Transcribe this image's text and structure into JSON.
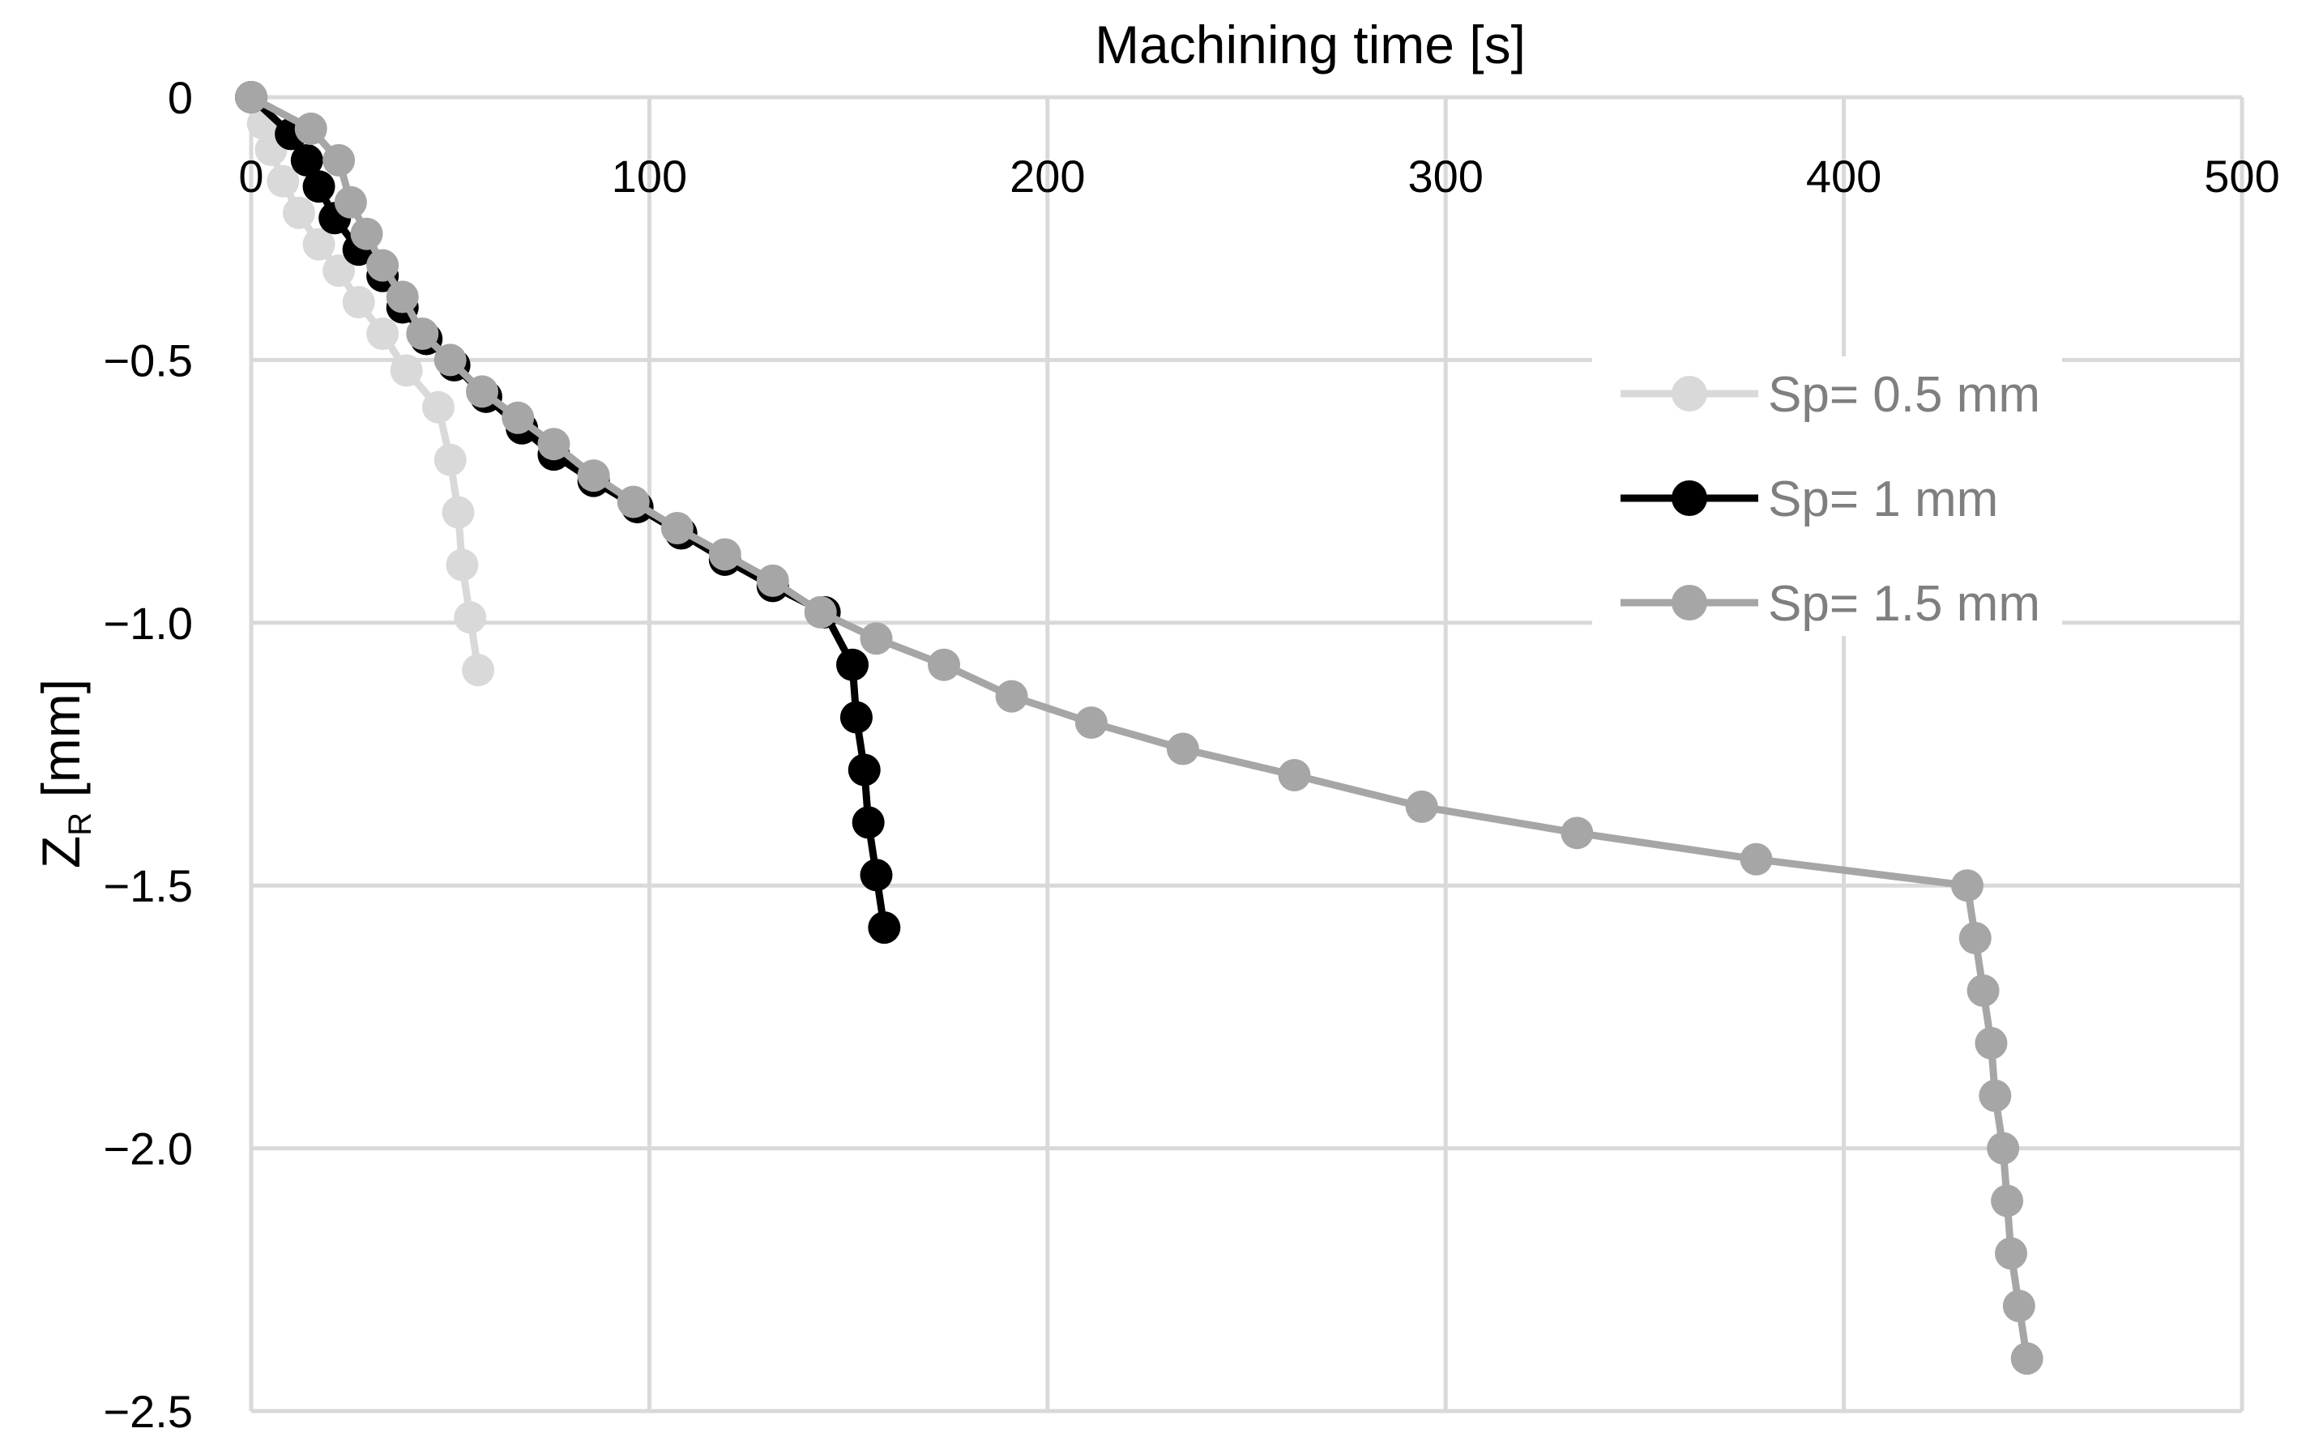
{
  "chart_data": {
    "type": "line",
    "xlabel": "Machining time [s]",
    "ylabel_main": "Z",
    "ylabel_sub": "R",
    "ylabel_unit": " [mm]",
    "xlim": [
      0,
      500
    ],
    "ylim": [
      -2.5,
      0
    ],
    "x_axis_position": "top",
    "x_ticks": [
      0,
      100,
      200,
      300,
      400,
      500
    ],
    "x_tick_labels": [
      "0",
      "100",
      "200",
      "300",
      "400",
      "500"
    ],
    "y_ticks": [
      0,
      -0.5,
      -1.0,
      -1.5,
      -2.0,
      -2.5
    ],
    "y_tick_labels": [
      "0",
      "−0.5",
      "−1.0",
      "−1.5",
      "−2.0",
      "−2.5"
    ],
    "grid": true,
    "legend_position": "right",
    "series": [
      {
        "name": "Sp= 0.5 mm",
        "color": "#d9d9d9",
        "points": [
          [
            0,
            0
          ],
          [
            3,
            -0.05
          ],
          [
            5,
            -0.1
          ],
          [
            8,
            -0.16
          ],
          [
            12,
            -0.22
          ],
          [
            17,
            -0.28
          ],
          [
            22,
            -0.33
          ],
          [
            27,
            -0.39
          ],
          [
            33,
            -0.45
          ],
          [
            39,
            -0.52
          ],
          [
            47,
            -0.59
          ],
          [
            50,
            -0.69
          ],
          [
            52,
            -0.79
          ],
          [
            53,
            -0.89
          ],
          [
            55,
            -0.99
          ],
          [
            57,
            -1.09
          ]
        ]
      },
      {
        "name": "Sp= 1 mm",
        "color": "#000000",
        "points": [
          [
            0,
            0
          ],
          [
            10,
            -0.07
          ],
          [
            14,
            -0.12
          ],
          [
            17,
            -0.17
          ],
          [
            21,
            -0.23
          ],
          [
            27,
            -0.29
          ],
          [
            33,
            -0.34
          ],
          [
            38,
            -0.4
          ],
          [
            44,
            -0.46
          ],
          [
            51,
            -0.51
          ],
          [
            59,
            -0.57
          ],
          [
            68,
            -0.63
          ],
          [
            76,
            -0.68
          ],
          [
            86,
            -0.73
          ],
          [
            97,
            -0.78
          ],
          [
            108,
            -0.83
          ],
          [
            119,
            -0.88
          ],
          [
            131,
            -0.93
          ],
          [
            144,
            -0.98
          ],
          [
            151,
            -1.08
          ],
          [
            152,
            -1.18
          ],
          [
            154,
            -1.28
          ],
          [
            155,
            -1.38
          ],
          [
            157,
            -1.48
          ],
          [
            159,
            -1.58
          ]
        ]
      },
      {
        "name": "Sp= 1.5 mm",
        "color": "#a6a6a6",
        "points": [
          [
            0,
            0
          ],
          [
            15,
            -0.06
          ],
          [
            22,
            -0.12
          ],
          [
            25,
            -0.2
          ],
          [
            29,
            -0.26
          ],
          [
            33,
            -0.32
          ],
          [
            38,
            -0.38
          ],
          [
            43,
            -0.45
          ],
          [
            50,
            -0.5
          ],
          [
            58,
            -0.56
          ],
          [
            67,
            -0.61
          ],
          [
            76,
            -0.66
          ],
          [
            86,
            -0.72
          ],
          [
            96,
            -0.77
          ],
          [
            107,
            -0.82
          ],
          [
            119,
            -0.87
          ],
          [
            131,
            -0.92
          ],
          [
            143,
            -0.98
          ],
          [
            157,
            -1.03
          ],
          [
            174,
            -1.08
          ],
          [
            191,
            -1.14
          ],
          [
            211,
            -1.19
          ],
          [
            234,
            -1.24
          ],
          [
            262,
            -1.29
          ],
          [
            294,
            -1.35
          ],
          [
            333,
            -1.4
          ],
          [
            378,
            -1.45
          ],
          [
            431,
            -1.5
          ],
          [
            433,
            -1.6
          ],
          [
            435,
            -1.7
          ],
          [
            437,
            -1.8
          ],
          [
            438,
            -1.9
          ],
          [
            440,
            -2.0
          ],
          [
            441,
            -2.1
          ],
          [
            442,
            -2.2
          ],
          [
            444,
            -2.3
          ],
          [
            446,
            -2.4
          ]
        ]
      }
    ]
  }
}
